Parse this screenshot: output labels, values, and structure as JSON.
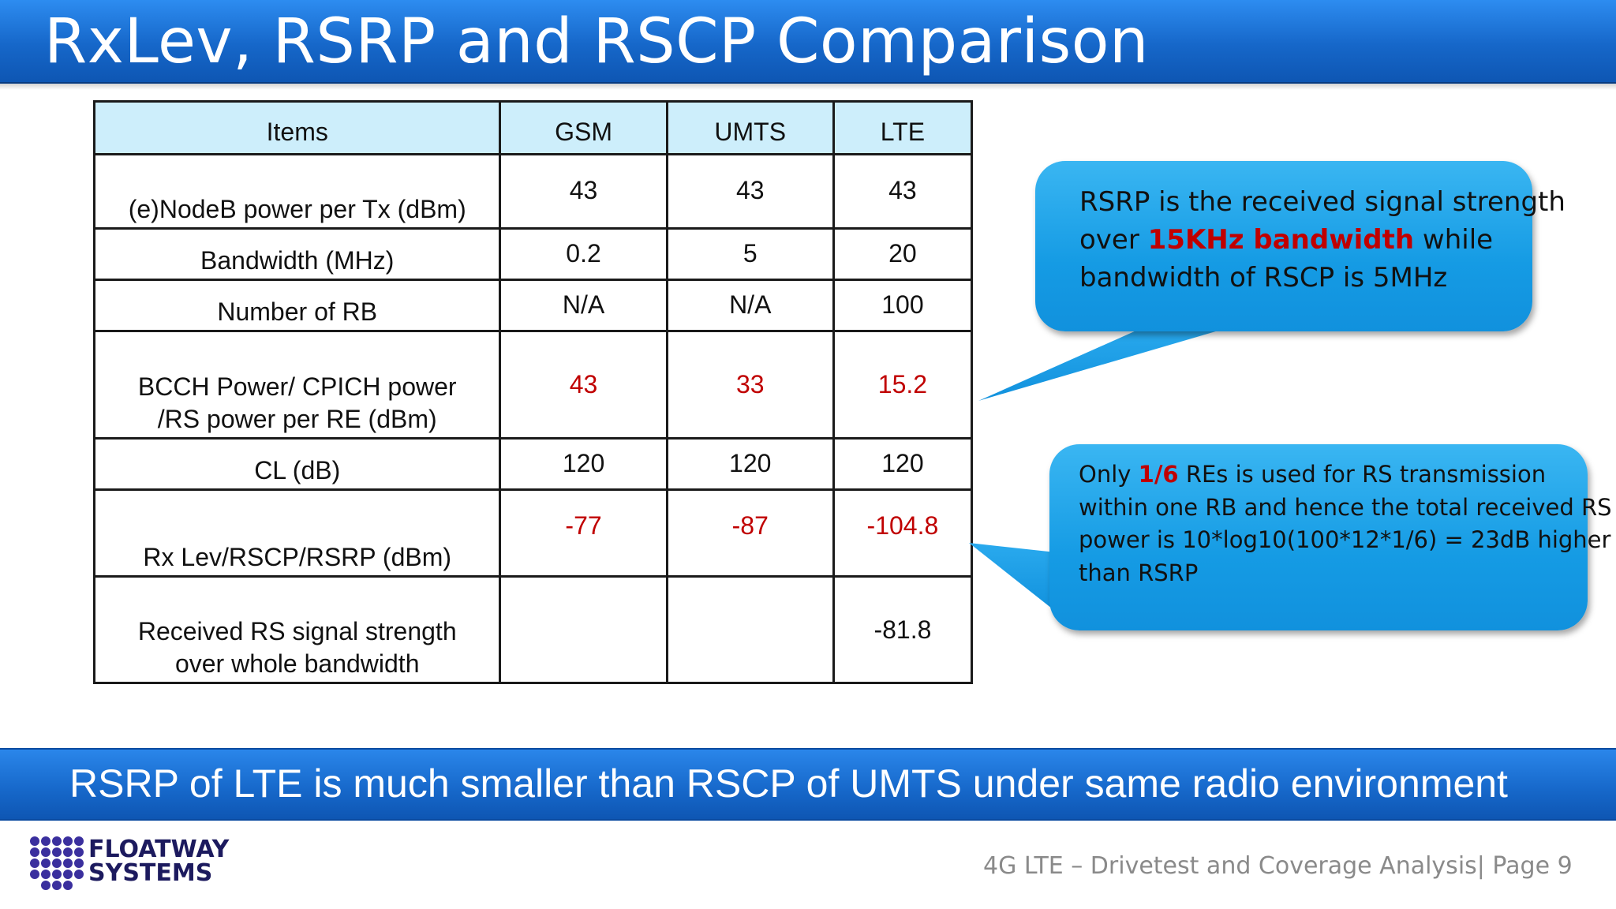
{
  "title": "RxLev, RSRP and RSCP Comparison",
  "table": {
    "headers": [
      "Items",
      "GSM",
      "UMTS",
      "LTE"
    ],
    "rows": [
      {
        "item": "(e)NodeB power per Tx (dBm)",
        "gsm": "43",
        "umts": "43",
        "lte": "43"
      },
      {
        "item": "Bandwidth (MHz)",
        "gsm": "0.2",
        "umts": "5",
        "lte": "20"
      },
      {
        "item": "Number of RB",
        "gsm": "N/A",
        "umts": "N/A",
        "lte": "100"
      },
      {
        "item_line1": "BCCH Power/ CPICH power",
        "item_line2": "/RS power per RE (dBm)",
        "gsm": "43",
        "umts": "33",
        "lte": "15.2"
      },
      {
        "item": "CL (dB)",
        "gsm": "120",
        "umts": "120",
        "lte": "120"
      },
      {
        "item": "Rx Lev/RSCP/RSRP (dBm)",
        "gsm": "-77",
        "umts": "-87",
        "lte": "-104.8"
      },
      {
        "item_line1": "Received RS signal strength",
        "item_line2": "over whole bandwidth",
        "gsm": "",
        "umts": "",
        "lte": "-81.8"
      }
    ]
  },
  "callout1": {
    "line1": "RSRP is the received signal strength",
    "line2_pre": "over ",
    "line2_highlight": "15KHz bandwidth",
    "line2_post": " while",
    "line3": "bandwidth of RSCP is 5MHz"
  },
  "callout2": {
    "line1_pre": "Only ",
    "line1_highlight": "1/6",
    "line1_post": " REs is used for RS transmission",
    "line2": "within one RB and hence the total received RS",
    "line3": "power is 10*log10(100*12*1/6) = 23dB higher",
    "line4": "than RSRP"
  },
  "banner": "RSRP of LTE is much smaller than RSCP of UMTS under same radio environment",
  "logo": {
    "line1": "FLOATWAY",
    "line2": "SYSTEMS"
  },
  "footer": "4G LTE – Drivetest and Coverage Analysis| Page 9",
  "colors": {
    "title_bar": "#1667c9",
    "header_fill": "#cdeefb",
    "highlight_red": "#c00000",
    "callout_blue": "#159be4",
    "logo_navy": "#1c1a5e"
  }
}
